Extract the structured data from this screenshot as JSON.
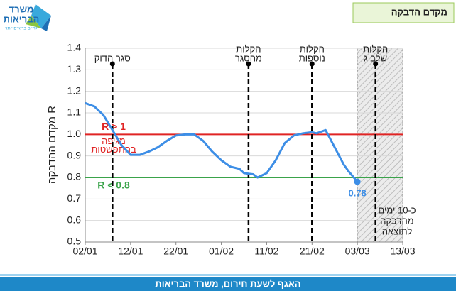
{
  "header": {
    "title": "מקדם הדבקה",
    "logo": [
      "משרד",
      "הבריאות"
    ],
    "logo_tagline": "לחיים בריאים יותר"
  },
  "footer": "האגף לשעת חירום, משרד הבריאות",
  "chart_data": {
    "type": "line",
    "y_label": "מקדם ההדבקה R",
    "xlim": [
      "02/01",
      "13/03"
    ],
    "xticks": [
      "02/01",
      "12/01",
      "22/01",
      "01/02",
      "11/02",
      "21/02",
      "03/03",
      "13/03"
    ],
    "ylim": [
      0.5,
      1.4
    ],
    "yticks": [
      0.5,
      0.6,
      0.7,
      0.8,
      0.9,
      {
        "value": 1,
        "label": "1.0"
      },
      1.1,
      1.2,
      1.3,
      1.4
    ],
    "grid": true,
    "series": [
      {
        "color": "#3d8ee6",
        "x": [
          "02/01",
          "04/01",
          "06/01",
          "08/01",
          "10/01",
          "12/01",
          "14/01",
          "16/01",
          "18/01",
          "20/01",
          "22/01",
          "24/01",
          "26/01",
          "28/01",
          "30/01",
          "01/02",
          "03/02",
          "05/02",
          "06/02",
          "08/02",
          "09/02",
          "10/02",
          "11/02",
          "13/02",
          "15/02",
          "17/02",
          "19/02",
          "21/02",
          "22/02",
          "24/02",
          "26/02",
          "28/02",
          "01/03",
          "03/03"
        ],
        "values": [
          1.145,
          1.13,
          1.09,
          1.02,
          0.95,
          0.905,
          0.905,
          0.92,
          0.94,
          0.97,
          0.995,
          1.0,
          1.0,
          0.97,
          0.92,
          0.88,
          0.85,
          0.84,
          0.82,
          0.815,
          0.8,
          0.81,
          0.82,
          0.88,
          0.96,
          0.995,
          1.005,
          1.01,
          1.005,
          1.02,
          0.94,
          0.86,
          0.83,
          0.78
        ]
      }
    ],
    "annotations": [
      {
        "x": "03/03",
        "y": 0.78
      }
    ],
    "reference_lines": [
      {
        "value": 1,
        "color": "#e02424",
        "label": "R > 1",
        "sublabel": [
          "מגיפה",
          "בהתפשטות"
        ]
      },
      {
        "value": 0.8,
        "color": "#3aa34a",
        "label": "R < 0.8"
      }
    ],
    "events": [
      {
        "x": "08/01",
        "label": [
          "סגר הדוק"
        ]
      },
      {
        "x": "07/02",
        "label": [
          "הקלות",
          "מהסגר"
        ]
      },
      {
        "x": "21/02",
        "label": [
          "הקלות",
          "נוספות"
        ]
      },
      {
        "x": "07/03",
        "label": [
          "הקלות",
          "שלב ג"
        ]
      }
    ],
    "shaded_region": {
      "x": [
        "03/03",
        "13/03"
      ],
      "label": [
        "כ-10 ימים",
        "מהדבקה",
        "לתוצאה"
      ]
    }
  }
}
